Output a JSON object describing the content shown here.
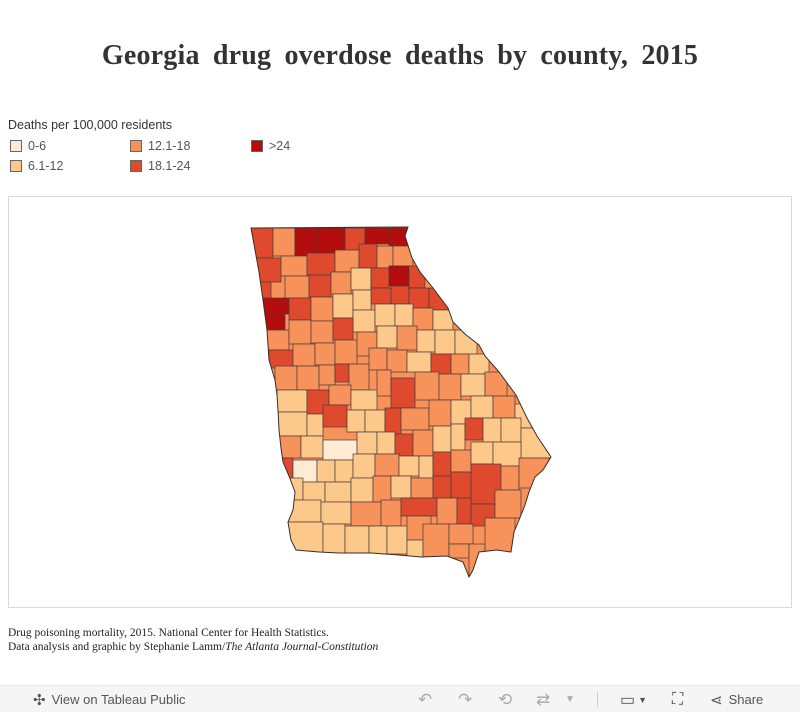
{
  "title": "Georgia drug overdose deaths by county, 2015",
  "legend": {
    "title": "Deaths per 100,000 residents",
    "items": [
      {
        "label": "0-6",
        "color": "#fdebd3"
      },
      {
        "label": "6.1-12",
        "color": "#fdc98a"
      },
      {
        "label": "12.1-18",
        "color": "#f7925b"
      },
      {
        "label": "18.1-24",
        "color": "#df4a2e"
      },
      {
        "label": ">24",
        "color": "#b40d0d"
      }
    ]
  },
  "source": {
    "line1": "Drug poisoning mortality, 2015. National Center for Health Statistics.",
    "line2_prefix": "Data analysis and graphic by Stephanie Lamm/",
    "line2_publication": "The Atlanta Journal-Constitution"
  },
  "toolbar": {
    "view_label": "View on Tableau Public",
    "share_label": "Share",
    "icons": [
      "tableau-logo-icon",
      "undo-icon",
      "redo-icon",
      "revert-icon",
      "refresh-icon",
      "dropdown-icon",
      "download-icon",
      "fullscreen-icon",
      "share-icon"
    ]
  }
}
